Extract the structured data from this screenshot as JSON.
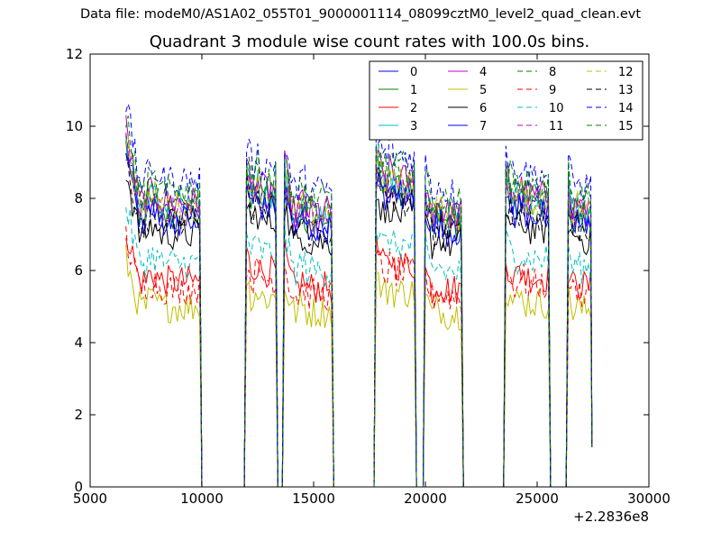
{
  "header": {
    "supertitle": "Data file: modeM0/AS1A02_055T01_9000001114_08099cztM0_level2_quad_clean.evt"
  },
  "chart_data": {
    "type": "line",
    "title": "Quadrant 3 module wise count rates with 100.0s bins.",
    "xlabel": "",
    "ylabel": "",
    "x_offset_label": "+2.2836e8",
    "xlim": [
      5000,
      30000
    ],
    "ylim": [
      0,
      12
    ],
    "xticks": [
      5000,
      10000,
      15000,
      20000,
      25000,
      30000
    ],
    "yticks": [
      0,
      2,
      4,
      6,
      8,
      10,
      12
    ],
    "grid": false,
    "legend_position": "top-right",
    "legend_columns": 4,
    "segments": [
      {
        "start": 6600,
        "end": 9900,
        "level": 1.0,
        "start_spike": 1.18
      },
      {
        "start": 12000,
        "end": 13300,
        "level": 1.05,
        "start_spike": 1.0
      },
      {
        "start": 13700,
        "end": 15800,
        "level": 0.97,
        "start_spike": 1.08
      },
      {
        "start": 17800,
        "end": 19500,
        "level": 1.08,
        "start_spike": 1.0
      },
      {
        "start": 20000,
        "end": 21600,
        "level": 0.96,
        "start_spike": 1.02
      },
      {
        "start": 23600,
        "end": 25500,
        "level": 1.02,
        "start_spike": 1.0
      },
      {
        "start": 26400,
        "end": 27400,
        "level": 0.98,
        "start_spike": 1.0
      }
    ],
    "gap_level": 0.0,
    "end_value": 1.1,
    "series": [
      {
        "name": "0",
        "color": "#0000ff",
        "style": "solid",
        "base": 7.5
      },
      {
        "name": "1",
        "color": "#008000",
        "style": "solid",
        "base": 7.6
      },
      {
        "name": "2",
        "color": "#ff0000",
        "style": "solid",
        "base": 5.7
      },
      {
        "name": "3",
        "color": "#00bfbf",
        "style": "solid",
        "base": 7.8
      },
      {
        "name": "4",
        "color": "#bf00bf",
        "style": "solid",
        "base": 7.9
      },
      {
        "name": "5",
        "color": "#bfbf00",
        "style": "solid",
        "base": 5.0
      },
      {
        "name": "6",
        "color": "#000000",
        "style": "solid",
        "base": 7.0
      },
      {
        "name": "7",
        "color": "#0000ff",
        "style": "solid",
        "base": 7.4
      },
      {
        "name": "8",
        "color": "#008000",
        "style": "dashed",
        "base": 8.0
      },
      {
        "name": "9",
        "color": "#ff0000",
        "style": "dashed",
        "base": 5.5
      },
      {
        "name": "10",
        "color": "#00bfbf",
        "style": "dashed",
        "base": 6.2
      },
      {
        "name": "11",
        "color": "#bf00bf",
        "style": "dashed",
        "base": 7.7
      },
      {
        "name": "12",
        "color": "#bfbf00",
        "style": "dashed",
        "base": 7.8
      },
      {
        "name": "13",
        "color": "#000000",
        "style": "dashed",
        "base": 7.3
      },
      {
        "name": "14",
        "color": "#0000ff",
        "style": "dashed",
        "base": 8.5
      },
      {
        "name": "15",
        "color": "#008000",
        "style": "dashed",
        "base": 8.2
      }
    ]
  }
}
